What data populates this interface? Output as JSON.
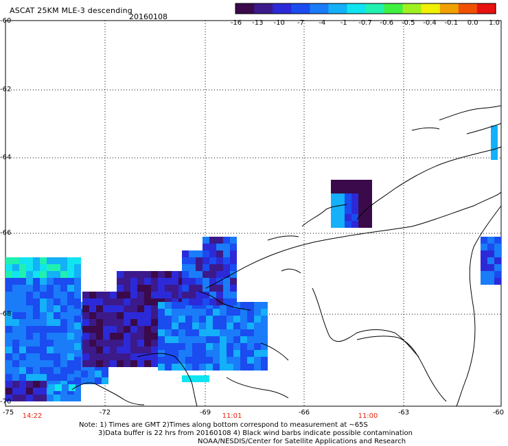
{
  "header": {
    "title": "ASCAT 25KM MLE-3 descending",
    "date": "20160108"
  },
  "colorbar": {
    "labels": [
      "-16",
      "-13",
      "-10",
      "-7",
      "-4",
      "-1",
      "-0.7",
      "-0.6",
      "-0.5",
      "-0.4",
      "-0.1",
      "0.0",
      "1.0"
    ],
    "colors": [
      "#3a0a4a",
      "#3c1a8a",
      "#2c2ad8",
      "#1a4cf0",
      "#1a7cf8",
      "#14b0f8",
      "#10e4f0",
      "#20f0b0",
      "#40f040",
      "#a0f020",
      "#f0f000",
      "#f0a000",
      "#f05000",
      "#e81010"
    ]
  },
  "map": {
    "y_labels": [
      "-60",
      "-62",
      "-64",
      "-66",
      "-68",
      "-70"
    ],
    "x_labels": [
      "-75",
      "-72",
      "-69",
      "-66",
      "-63",
      "-60"
    ],
    "time_labels": [
      "14:22",
      "11:01",
      "11:00"
    ]
  },
  "notes": {
    "line1": "Note: 1) Times are GMT 2)Times along bottom correspond to measurement at ~65S",
    "line2": "3)Data buffer is 22 hrs from 20160108 4) Black wind barbs indicate possible contamination",
    "line3": "NOAA/NESDIS/Center for Satellite Applications and Research"
  }
}
